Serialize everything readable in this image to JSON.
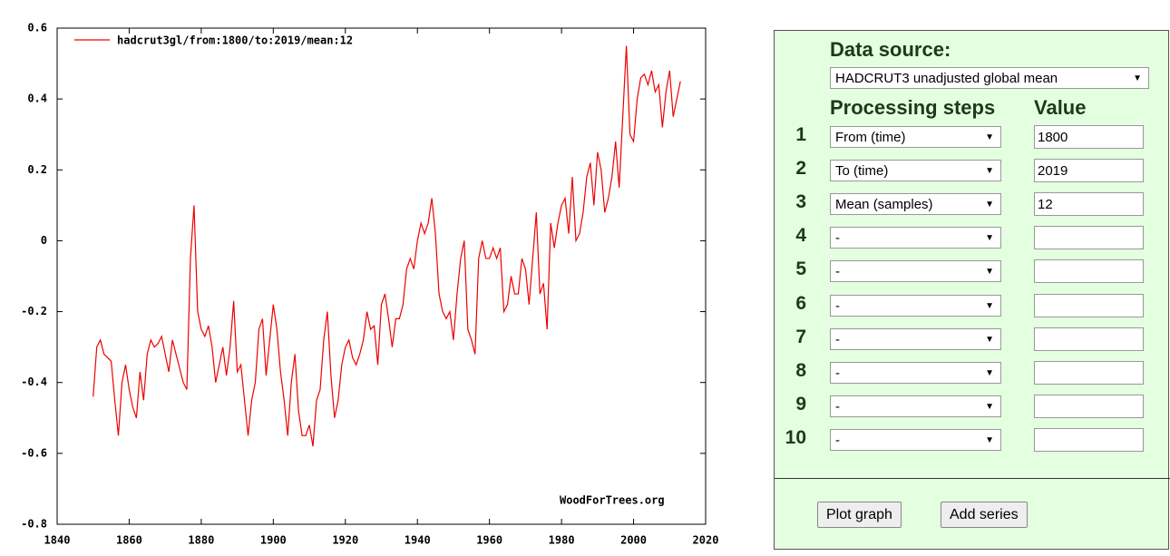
{
  "chart_data": {
    "type": "line",
    "x": [
      1850,
      1851,
      1852,
      1853,
      1854,
      1855,
      1856,
      1857,
      1858,
      1859,
      1860,
      1861,
      1862,
      1863,
      1864,
      1865,
      1866,
      1867,
      1868,
      1869,
      1870,
      1871,
      1872,
      1873,
      1874,
      1875,
      1876,
      1877,
      1878,
      1879,
      1880,
      1881,
      1882,
      1883,
      1884,
      1885,
      1886,
      1887,
      1888,
      1889,
      1890,
      1891,
      1892,
      1893,
      1894,
      1895,
      1896,
      1897,
      1898,
      1899,
      1900,
      1901,
      1902,
      1903,
      1904,
      1905,
      1906,
      1907,
      1908,
      1909,
      1910,
      1911,
      1912,
      1913,
      1914,
      1915,
      1916,
      1917,
      1918,
      1919,
      1920,
      1921,
      1922,
      1923,
      1924,
      1925,
      1926,
      1927,
      1928,
      1929,
      1930,
      1931,
      1932,
      1933,
      1934,
      1935,
      1936,
      1937,
      1938,
      1939,
      1940,
      1941,
      1942,
      1943,
      1944,
      1945,
      1946,
      1947,
      1948,
      1949,
      1950,
      1951,
      1952,
      1953,
      1954,
      1955,
      1956,
      1957,
      1958,
      1959,
      1960,
      1961,
      1962,
      1963,
      1964,
      1965,
      1966,
      1967,
      1968,
      1969,
      1970,
      1971,
      1972,
      1973,
      1974,
      1975,
      1976,
      1977,
      1978,
      1979,
      1980,
      1981,
      1982,
      1983,
      1984,
      1985,
      1986,
      1987,
      1988,
      1989,
      1990,
      1991,
      1992,
      1993,
      1994,
      1995,
      1996,
      1997,
      1998,
      1999,
      2000,
      2001,
      2002,
      2003,
      2004,
      2005,
      2006,
      2007,
      2008,
      2009,
      2010,
      2011,
      2012,
      2013
    ],
    "series": [
      {
        "name": "hadcrut3gl/from:1800/to:2019/mean:12",
        "color": "#ee0000",
        "values": [
          -0.44,
          -0.3,
          -0.28,
          -0.32,
          -0.33,
          -0.34,
          -0.45,
          -0.55,
          -0.4,
          -0.35,
          -0.42,
          -0.47,
          -0.5,
          -0.37,
          -0.45,
          -0.32,
          -0.28,
          -0.3,
          -0.29,
          -0.27,
          -0.32,
          -0.37,
          -0.28,
          -0.32,
          -0.36,
          -0.4,
          -0.42,
          -0.05,
          0.1,
          -0.2,
          -0.25,
          -0.27,
          -0.24,
          -0.3,
          -0.4,
          -0.35,
          -0.3,
          -0.38,
          -0.3,
          -0.17,
          -0.37,
          -0.35,
          -0.45,
          -0.55,
          -0.45,
          -0.4,
          -0.25,
          -0.22,
          -0.38,
          -0.28,
          -0.18,
          -0.25,
          -0.37,
          -0.45,
          -0.55,
          -0.4,
          -0.32,
          -0.48,
          -0.55,
          -0.55,
          -0.52,
          -0.58,
          -0.45,
          -0.42,
          -0.28,
          -0.2,
          -0.38,
          -0.5,
          -0.45,
          -0.35,
          -0.3,
          -0.28,
          -0.33,
          -0.35,
          -0.32,
          -0.28,
          -0.2,
          -0.25,
          -0.24,
          -0.35,
          -0.18,
          -0.15,
          -0.22,
          -0.3,
          -0.22,
          -0.22,
          -0.18,
          -0.08,
          -0.05,
          -0.08,
          0.0,
          0.05,
          0.02,
          0.05,
          0.12,
          0.02,
          -0.15,
          -0.2,
          -0.22,
          -0.2,
          -0.28,
          -0.15,
          -0.05,
          0.0,
          -0.25,
          -0.28,
          -0.32,
          -0.05,
          0.0,
          -0.05,
          -0.05,
          -0.02,
          -0.05,
          -0.02,
          -0.2,
          -0.18,
          -0.1,
          -0.15,
          -0.15,
          -0.05,
          -0.08,
          -0.18,
          -0.05,
          0.08,
          -0.15,
          -0.12,
          -0.25,
          0.05,
          -0.02,
          0.05,
          0.1,
          0.12,
          0.02,
          0.18,
          0.0,
          0.02,
          0.08,
          0.18,
          0.22,
          0.1,
          0.25,
          0.2,
          0.08,
          0.12,
          0.18,
          0.28,
          0.15,
          0.35,
          0.55,
          0.3,
          0.28,
          0.4,
          0.46,
          0.47,
          0.44,
          0.48,
          0.42,
          0.44,
          0.32,
          0.42,
          0.48,
          0.35,
          0.4,
          0.45
        ]
      }
    ],
    "xlim": [
      1840,
      2020
    ],
    "xticks": [
      1840,
      1860,
      1880,
      1900,
      1920,
      1940,
      1960,
      1980,
      2000,
      2020
    ],
    "ylim": [
      -0.8,
      0.6
    ],
    "yticks": [
      -0.8,
      -0.6,
      -0.4,
      -0.2,
      0,
      0.2,
      0.4,
      0.6
    ],
    "watermark": "WoodForTrees.org",
    "legend": "upper left"
  },
  "form": {
    "data_source_label": "Data source:",
    "data_source": "HADCRUT3 unadjusted global mean",
    "steps_header": "Processing steps",
    "value_header": "Value",
    "rows": [
      {
        "number": "1",
        "step": "From (time)",
        "value": "1800"
      },
      {
        "number": "2",
        "step": "To (time)",
        "value": "2019"
      },
      {
        "number": "3",
        "step": "Mean (samples)",
        "value": "12"
      },
      {
        "number": "4",
        "step": "-"
      },
      {
        "number": "5",
        "step": "-"
      },
      {
        "number": "6",
        "step": "-"
      },
      {
        "number": "7",
        "step": "-"
      },
      {
        "number": "8",
        "step": "-"
      },
      {
        "number": "9",
        "step": "-"
      },
      {
        "number": "10",
        "step": "-"
      }
    ],
    "buttons": [
      "Plot graph",
      "Add series"
    ]
  }
}
